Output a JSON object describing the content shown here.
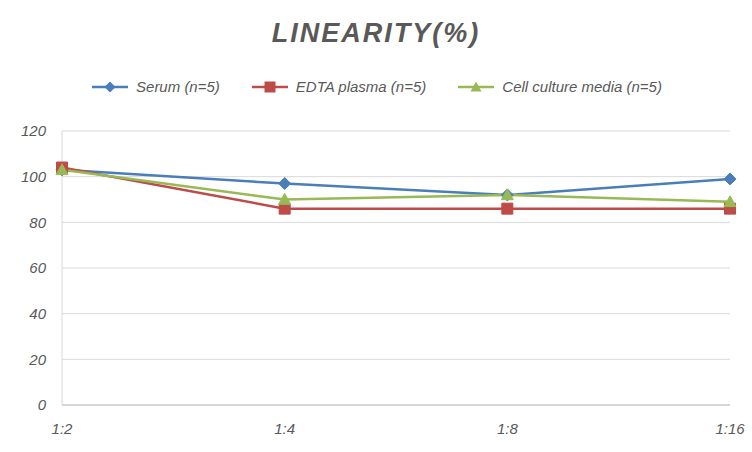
{
  "chart_data": {
    "type": "line",
    "title": "LINEARITY(%)",
    "categories": [
      "1:2",
      "1:4",
      "1:8",
      "1:16"
    ],
    "series": [
      {
        "name": "Serum (n=5)",
        "color": "#4a7ebb",
        "marker": "diamond",
        "values": [
          103,
          97,
          92,
          99
        ]
      },
      {
        "name": "EDTA plasma (n=5)",
        "color": "#be4b48",
        "marker": "square",
        "values": [
          104,
          86,
          86,
          86
        ]
      },
      {
        "name": "Cell culture media (n=5)",
        "color": "#98b954",
        "marker": "triangle",
        "values": [
          103,
          90,
          92,
          89
        ]
      }
    ],
    "ylim": [
      0,
      120
    ],
    "yticks": [
      0,
      20,
      40,
      60,
      80,
      100,
      120
    ],
    "grid": true,
    "legend": "top"
  }
}
